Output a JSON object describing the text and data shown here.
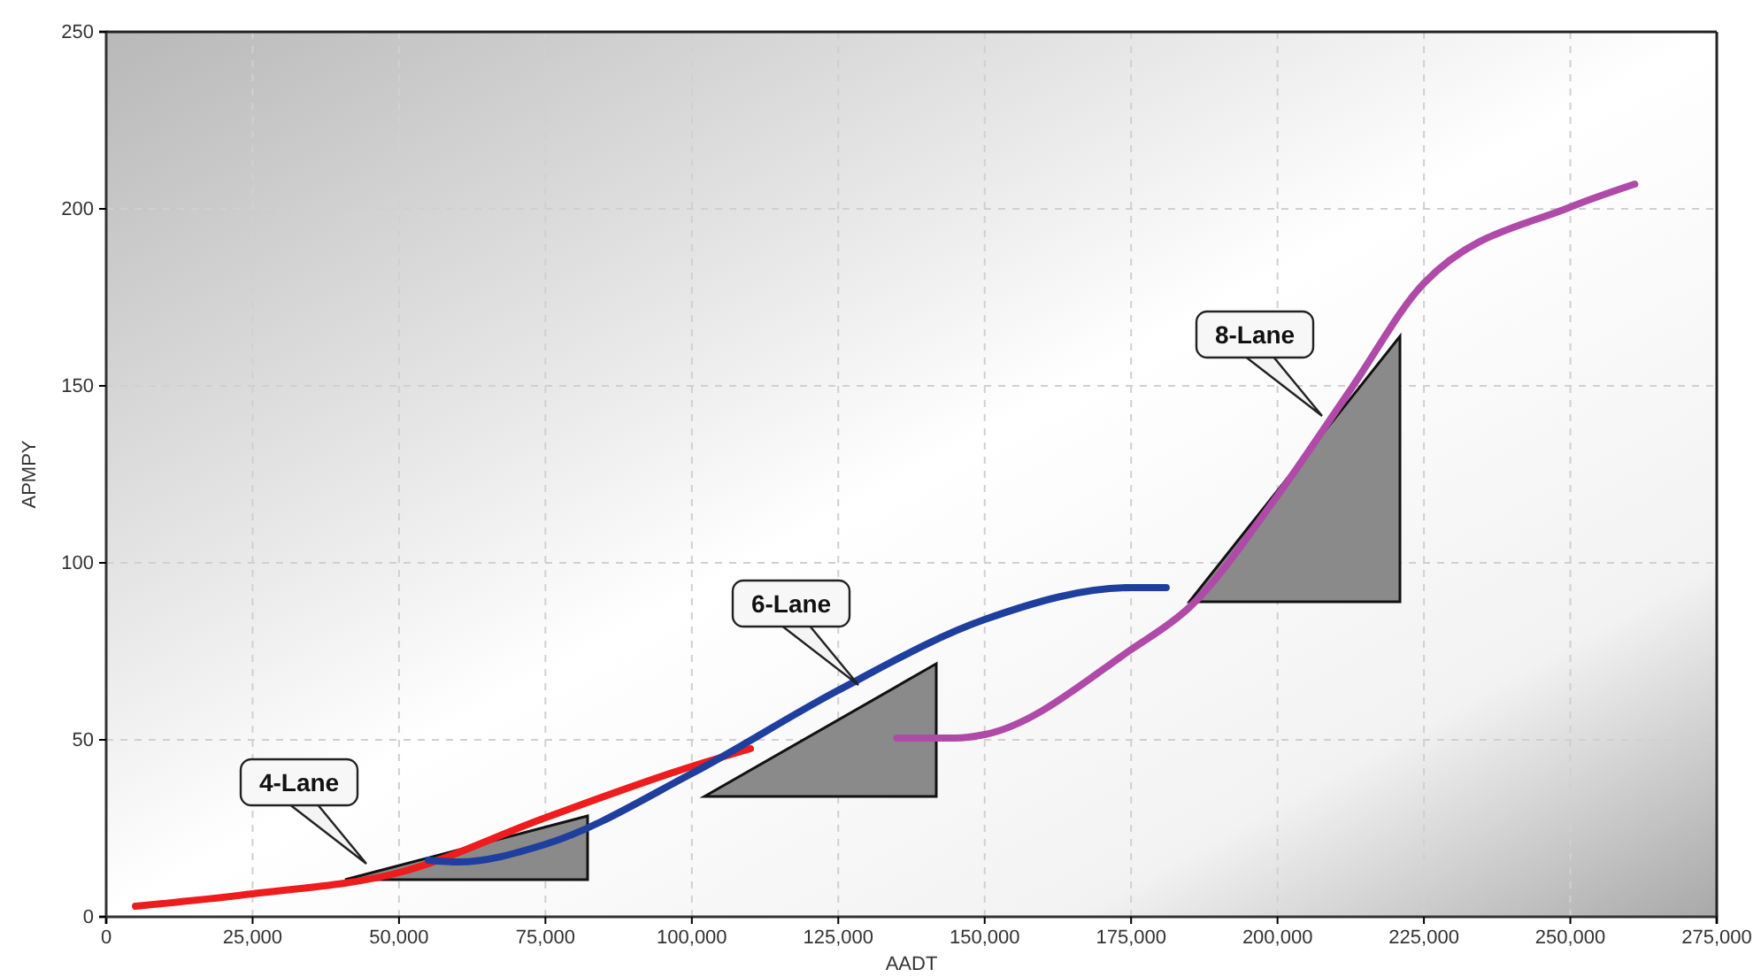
{
  "chart_data": {
    "type": "line",
    "xlabel": "AADT",
    "ylabel": "APMPY",
    "xlim": [
      0,
      275000
    ],
    "xticks": [
      {
        "value": 0,
        "label": "0"
      },
      {
        "value": 25000,
        "label": "25,000"
      },
      {
        "value": 50000,
        "label": "50,000"
      },
      {
        "value": 75000,
        "label": "75,000"
      },
      {
        "value": 100000,
        "label": "100,000"
      },
      {
        "value": 125000,
        "label": "125,000"
      },
      {
        "value": 150000,
        "label": "150,000"
      },
      {
        "value": 175000,
        "label": "175,000"
      },
      {
        "value": 200000,
        "label": "200,000"
      },
      {
        "value": 225000,
        "label": "225,000"
      },
      {
        "value": 250000,
        "label": "250,000"
      },
      {
        "value": 275000,
        "label": "275,000"
      }
    ],
    "ylim": [
      0,
      250
    ],
    "yticks": [
      0,
      50,
      100,
      150,
      200,
      250
    ],
    "grid": true,
    "series": [
      {
        "color": "#ee1c1c",
        "x": [
          5000,
          25000,
          50000,
          75000,
          100000,
          110000
        ],
        "values": [
          3,
          6.5,
          12.5,
          28,
          42.5,
          47.5
        ]
      },
      {
        "color": "#1f3f9f",
        "x": [
          55000,
          60000,
          75000,
          100000,
          125000,
          150000,
          175000,
          181000
        ],
        "values": [
          16,
          15.5,
          20.5,
          40.5,
          64,
          84,
          93,
          93
        ]
      },
      {
        "color": "#b04aa8",
        "x": [
          135000,
          145000,
          150000,
          175000,
          185000,
          200000,
          212500,
          225000,
          250000,
          261000
        ],
        "values": [
          50.5,
          50.5,
          51.5,
          75.5,
          87.5,
          119,
          149,
          179,
          200.5,
          207
        ]
      }
    ],
    "annotations": [
      "4-Lane",
      "6-Lane",
      "8-Lane"
    ]
  }
}
